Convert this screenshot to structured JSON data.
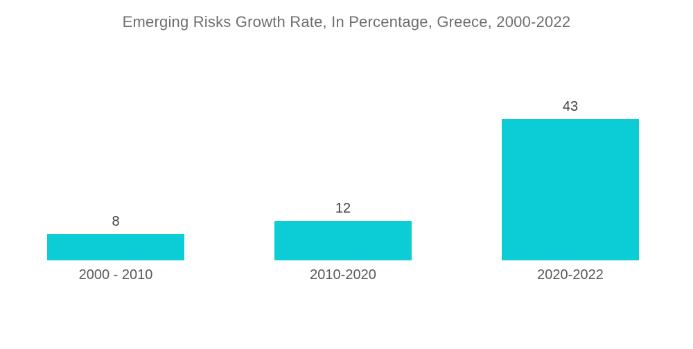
{
  "title": "Emerging Risks Growth Rate, In Percentage, Greece, 2000-2022",
  "chart_data": {
    "type": "bar",
    "title": "Emerging Risks Growth Rate, In Percentage, Greece, 2000-2022",
    "categories": [
      "2000 - 2010",
      "2010-2020",
      "2020-2022"
    ],
    "values": [
      8,
      12,
      43
    ],
    "xlabel": "",
    "ylabel": "",
    "ylim": [
      0,
      43
    ],
    "grid": false,
    "legend": false,
    "background_color": "#ffffff",
    "bar_color": "#0ccdd6",
    "title_color": "#6e6e6e",
    "value_label_color": "#414042",
    "category_label_color": "#58595b"
  }
}
